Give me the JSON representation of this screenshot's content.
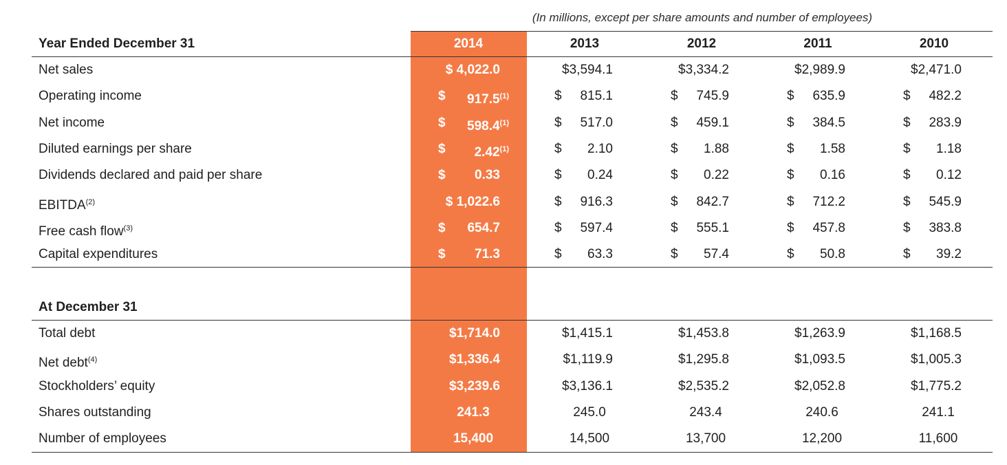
{
  "caption": "(In millions, except per share amounts and number of employees)",
  "years": [
    "2014",
    "2013",
    "2012",
    "2011",
    "2010"
  ],
  "section1": {
    "title": "Year Ended December 31",
    "rows": [
      {
        "label": "Net sales",
        "note": "",
        "style": "attached",
        "values": [
          "$ 4,022.0",
          "$3,594.1",
          "$3,334.2",
          "$2,989.9",
          "$2,471.0"
        ],
        "notes": [
          "",
          "",
          "",
          "",
          ""
        ]
      },
      {
        "label": "Operating income",
        "note": "",
        "style": "split",
        "values": [
          "917.5",
          "815.1",
          "745.9",
          "635.9",
          "482.2"
        ],
        "notes": [
          "(1)",
          "",
          "",
          "",
          ""
        ]
      },
      {
        "label": "Net income",
        "note": "",
        "style": "split",
        "values": [
          "598.4",
          "517.0",
          "459.1",
          "384.5",
          "283.9"
        ],
        "notes": [
          "(1)",
          "",
          "",
          "",
          ""
        ]
      },
      {
        "label": "Diluted earnings per share",
        "note": "",
        "style": "split",
        "values": [
          "2.42",
          "2.10",
          "1.88",
          "1.58",
          "1.18"
        ],
        "notes": [
          "(1)",
          "",
          "",
          "",
          ""
        ]
      },
      {
        "label": "Dividends declared and paid per share",
        "note": "",
        "style": "split",
        "values": [
          "0.33",
          "0.24",
          "0.22",
          "0.16",
          "0.12"
        ],
        "notes": [
          "",
          "",
          "",
          "",
          ""
        ]
      },
      {
        "label": "EBITDA",
        "note": "(2)",
        "style": "split-first-attached",
        "values": [
          "$ 1,022.6",
          "916.3",
          "842.7",
          "712.2",
          "545.9"
        ],
        "notes": [
          "",
          "",
          "",
          "",
          ""
        ]
      },
      {
        "label": "Free cash flow",
        "note": "(3)",
        "style": "split",
        "values": [
          "654.7",
          "597.4",
          "555.1",
          "457.8",
          "383.8"
        ],
        "notes": [
          "",
          "",
          "",
          "",
          ""
        ]
      },
      {
        "label": "Capital expenditures",
        "note": "",
        "style": "split",
        "values": [
          "71.3",
          "63.3",
          "57.4",
          "50.8",
          "39.2"
        ],
        "notes": [
          "",
          "",
          "",
          "",
          ""
        ]
      }
    ]
  },
  "section2": {
    "title": "At December 31",
    "rows": [
      {
        "label": "Total debt",
        "note": "",
        "style": "attached",
        "values": [
          "$1,714.0",
          "$1,415.1",
          "$1,453.8",
          "$1,263.9",
          "$1,168.5"
        ],
        "notes": [
          "",
          "",
          "",
          "",
          ""
        ]
      },
      {
        "label": "Net debt",
        "note": "(4)",
        "style": "attached",
        "values": [
          "$1,336.4",
          "$1,119.9",
          "$1,295.8",
          "$1,093.5",
          "$1,005.3"
        ],
        "notes": [
          "",
          "",
          "",
          "",
          ""
        ]
      },
      {
        "label": "Stockholders’ equity",
        "note": "",
        "style": "attached",
        "values": [
          "$3,239.6",
          "$3,136.1",
          "$2,535.2",
          "$2,052.8",
          "$1,775.2"
        ],
        "notes": [
          "",
          "",
          "",
          "",
          ""
        ]
      },
      {
        "label": "Shares outstanding",
        "note": "",
        "style": "plain",
        "values": [
          "241.3",
          "245.0",
          "243.4",
          "240.6",
          "241.1"
        ],
        "notes": [
          "",
          "",
          "",
          "",
          ""
        ]
      },
      {
        "label": "Number of employees",
        "note": "",
        "style": "plain",
        "values": [
          "15,400",
          "14,500",
          "13,700",
          "12,200",
          "11,600"
        ],
        "notes": [
          "",
          "",
          "",
          "",
          ""
        ]
      }
    ]
  },
  "currency_symbol": "$",
  "accent_color": "#f47a45"
}
